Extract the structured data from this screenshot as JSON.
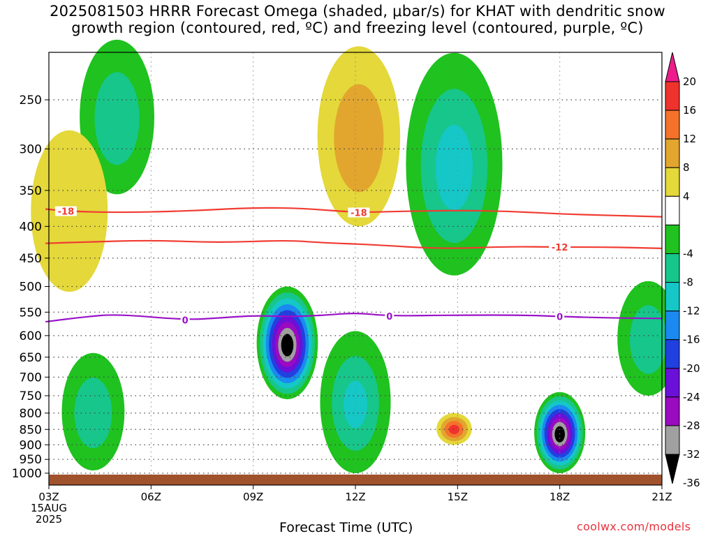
{
  "chart_data": {
    "type": "heatmap",
    "title_lines": [
      "2025081503 HRRR Forecast Omega (shaded, μbar/s) for KHAT with dendritic snow",
      "growth region (contoured, red, ºC) and freezing level (contoured, purple, ºC)"
    ],
    "xlabel": "Forecast Time (UTC)",
    "ylabel": "",
    "credit": "coolwx.com/models",
    "x_ticks": [
      {
        "hour": 3,
        "label": "03Z"
      },
      {
        "hour": 6,
        "label": "06Z"
      },
      {
        "hour": 9,
        "label": "09Z"
      },
      {
        "hour": 12,
        "label": "12Z"
      },
      {
        "hour": 15,
        "label": "15Z"
      },
      {
        "hour": 18,
        "label": "18Z"
      },
      {
        "hour": 21,
        "label": "21Z"
      }
    ],
    "x_date_lines": [
      "15AUG",
      "2025"
    ],
    "xlim": [
      3,
      21
    ],
    "y_ticks": [
      250,
      300,
      350,
      400,
      450,
      500,
      550,
      600,
      650,
      700,
      750,
      800,
      850,
      900,
      950,
      1000
    ],
    "ylim": [
      200,
      1020
    ],
    "y_scale": "log-pressure",
    "grid": true,
    "surface_color": "#a0522d",
    "surface_pressure": 1010,
    "colorbar": {
      "labels": [
        "20",
        "16",
        "12",
        "8",
        "4",
        "-4",
        "-8",
        "-12",
        "-16",
        "-20",
        "-24",
        "-28",
        "-32",
        "-36"
      ],
      "bins": [
        {
          "min": 20,
          "color": "#ee1b8c"
        },
        {
          "min": 16,
          "max": 20,
          "color": "#f0322d"
        },
        {
          "min": 12,
          "max": 16,
          "color": "#f5722b"
        },
        {
          "min": 8,
          "max": 12,
          "color": "#e2a62e"
        },
        {
          "min": 4,
          "max": 8,
          "color": "#e4d83a"
        },
        {
          "min": -4,
          "max": 4,
          "color": "#ffffff"
        },
        {
          "min": -8,
          "max": -4,
          "color": "#1fc21f"
        },
        {
          "min": -12,
          "max": -8,
          "color": "#17c68a"
        },
        {
          "min": -16,
          "max": -12,
          "color": "#15c7c7"
        },
        {
          "min": -20,
          "max": -16,
          "color": "#1a8af0"
        },
        {
          "min": -24,
          "max": -20,
          "color": "#2040e0"
        },
        {
          "min": -28,
          "max": -24,
          "color": "#6a10d8"
        },
        {
          "min": -32,
          "max": -28,
          "color": "#9a0ac0"
        },
        {
          "min": -36,
          "max": -32,
          "color": "#a0a0a0"
        },
        {
          "max": -36,
          "color": "#000000"
        }
      ]
    },
    "omega_features": [
      {
        "hour": 5.0,
        "p_top": 200,
        "p_bottom": 355,
        "peak": -10,
        "sign": "negative"
      },
      {
        "hour": 3.6,
        "p_top": 280,
        "p_bottom": 510,
        "peak": 6,
        "sign": "positive"
      },
      {
        "hour": 10.0,
        "p_top": 500,
        "p_bottom": 760,
        "peak": -40,
        "sign": "negative"
      },
      {
        "hour": 18.0,
        "p_top": 740,
        "p_bottom": 1000,
        "peak": -40,
        "sign": "negative"
      },
      {
        "hour": 12.1,
        "p_top": 205,
        "p_bottom": 400,
        "peak": 10,
        "sign": "positive"
      },
      {
        "hour": 14.9,
        "p_top": 210,
        "p_bottom": 480,
        "peak": -13,
        "sign": "negative"
      },
      {
        "hour": 14.9,
        "p_top": 800,
        "p_bottom": 900,
        "peak": 17,
        "sign": "positive"
      },
      {
        "hour": 12.0,
        "p_top": 590,
        "p_bottom": 1000,
        "peak": -12,
        "sign": "negative"
      },
      {
        "hour": 4.3,
        "p_top": 640,
        "p_bottom": 990,
        "peak": -10,
        "sign": "negative"
      },
      {
        "hour": 20.6,
        "p_top": 490,
        "p_bottom": 750,
        "peak": -10,
        "sign": "negative"
      }
    ],
    "contours": [
      {
        "kind": "dendritic",
        "label": "-18",
        "color": "#f03c32",
        "points": [
          [
            2.9,
            375
          ],
          [
            3.5,
            378
          ],
          [
            5,
            380
          ],
          [
            7,
            378
          ],
          [
            9,
            373
          ],
          [
            10.5,
            374
          ],
          [
            12,
            380
          ],
          [
            13.5,
            378
          ],
          [
            15,
            377
          ],
          [
            16.5,
            378
          ],
          [
            18,
            382
          ],
          [
            19.5,
            384
          ],
          [
            21,
            386
          ]
        ],
        "label_hours": [
          3.5,
          12.1
        ]
      },
      {
        "kind": "dendritic",
        "label": "-12",
        "color": "#f03c32",
        "points": [
          [
            2.9,
            426
          ],
          [
            4,
            424
          ],
          [
            6,
            421
          ],
          [
            8,
            425
          ],
          [
            10,
            421
          ],
          [
            11,
            425
          ],
          [
            12.5,
            428
          ],
          [
            14.5,
            435
          ],
          [
            16.5,
            431
          ],
          [
            18,
            432
          ],
          [
            19.5,
            432
          ],
          [
            21,
            434
          ]
        ],
        "label_hours": [
          18.0
        ]
      },
      {
        "kind": "freezing",
        "label": "0",
        "color": "#9a12c8",
        "points": [
          [
            2.9,
            570
          ],
          [
            4,
            560
          ],
          [
            5,
            554
          ],
          [
            7,
            566
          ],
          [
            8,
            562
          ],
          [
            9,
            557
          ],
          [
            10,
            559
          ],
          [
            11,
            557
          ],
          [
            12,
            551
          ],
          [
            13,
            558
          ],
          [
            15,
            556
          ],
          [
            17,
            556
          ],
          [
            18,
            559
          ],
          [
            19.5,
            562
          ],
          [
            21,
            563
          ]
        ],
        "label_hours": [
          7.0,
          13.0,
          18.0
        ]
      }
    ]
  }
}
